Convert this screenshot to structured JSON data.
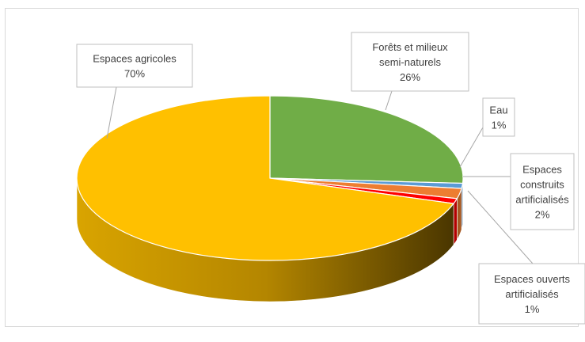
{
  "chart_data": {
    "type": "pie",
    "title": "",
    "style": "3d-exploded-pie",
    "slices": [
      {
        "label_lines": [
          "Forêts et milieux",
          "semi-naturels"
        ],
        "percent_label": "26%",
        "value": 26,
        "color": "#70ad47"
      },
      {
        "label_lines": [
          "Eau"
        ],
        "percent_label": "1%",
        "value": 1,
        "color": "#5b9bd5"
      },
      {
        "label_lines": [
          "Espaces",
          "construits",
          "artificialisés"
        ],
        "percent_label": "2%",
        "value": 2,
        "color": "#ed7d31"
      },
      {
        "label_lines": [
          "Espaces ouverts",
          "artificialisés"
        ],
        "percent_label": "1%",
        "value": 1,
        "color": "#ff0000"
      },
      {
        "label_lines": [
          "Espaces agricoles"
        ],
        "percent_label": "70%",
        "value": 70,
        "color": "#ffc000"
      }
    ],
    "legend": "none",
    "data_labels": "callouts"
  }
}
